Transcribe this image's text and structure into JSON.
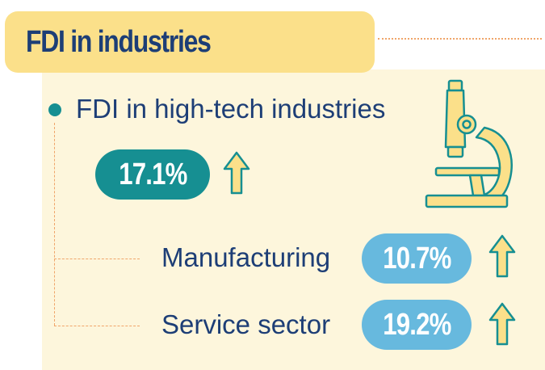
{
  "header": {
    "title": "FDI in industries"
  },
  "main": {
    "heading": "FDI in high-tech industries",
    "total_growth": "17.1%",
    "items": [
      {
        "label": "Manufacturing",
        "value": "10.7%"
      },
      {
        "label": "Service sector",
        "value": "19.2%"
      }
    ]
  },
  "colors": {
    "title_bg": "#fbe08a",
    "panel_bg": "#fdf6dc",
    "text": "#1d3e76",
    "teal": "#168f92",
    "light_blue": "#67b9de",
    "arrow_fill": "#fbe08a",
    "dots": "#f0a56a"
  },
  "icons": [
    "up-arrow-icon",
    "microscope-icon"
  ]
}
